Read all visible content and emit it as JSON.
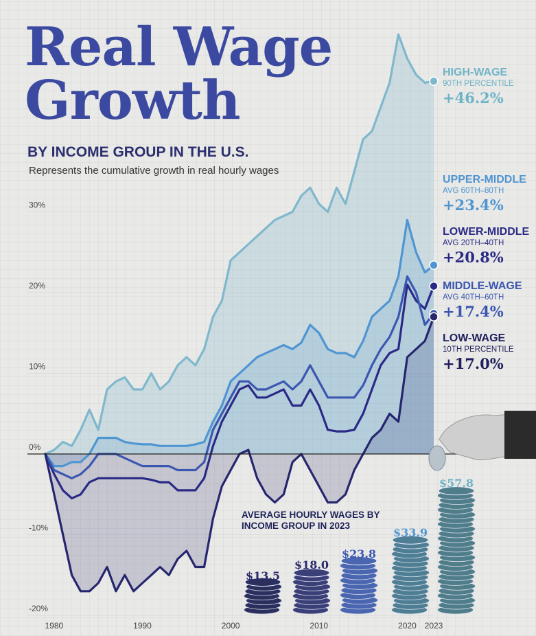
{
  "header": {
    "title_line1": "Real Wage",
    "title_line2": "Growth",
    "subtitle": "BY INCOME GROUP IN THE U.S.",
    "description": "Represents the cumulative growth in real hourly wages"
  },
  "colors": {
    "high": "#7fb8cc",
    "upper_middle": "#4f95d2",
    "lower_middle": "#2a2a86",
    "middle": "#3b57b0",
    "low": "#25266e",
    "title": "#3b4aa0"
  },
  "legend": [
    {
      "name": "HIGH-WAGE",
      "sub": "90TH PERCENTILE",
      "value": "+46.2%"
    },
    {
      "name": "UPPER-MIDDLE",
      "sub": "AVG 60TH–80TH",
      "value": "+23.4%"
    },
    {
      "name": "LOWER-MIDDLE",
      "sub": "AVG 20TH–40TH",
      "value": "+20.8%"
    },
    {
      "name": "MIDDLE-WAGE",
      "sub": "AVG 40TH–60TH",
      "value": "+17.4%"
    },
    {
      "name": "LOW-WAGE",
      "sub": "10TH PERCENTILE",
      "value": "+17.0%"
    }
  ],
  "inset": {
    "title": "AVERAGE HOURLY WAGES BY INCOME GROUP IN 2023",
    "wages": [
      {
        "label": "$13.5",
        "value": 13.5
      },
      {
        "label": "$18.0",
        "value": 18.0
      },
      {
        "label": "$23.8",
        "value": 23.8
      },
      {
        "label": "$33.9",
        "value": 33.9
      },
      {
        "label": "$57.8",
        "value": 57.8
      }
    ]
  },
  "chart_data": {
    "type": "line",
    "title": "Real Wage Growth",
    "xlabel": "",
    "ylabel": "",
    "xlim": [
      1980,
      2023
    ],
    "ylim": [
      -20,
      50
    ],
    "x_ticks": [
      1980,
      1990,
      2000,
      2010,
      2020,
      2023
    ],
    "y_ticks": [
      -20,
      -10,
      0,
      10,
      20,
      30
    ],
    "y_tick_labels": [
      "-20%",
      "-10%",
      "0%",
      "10%",
      "20%",
      "30%"
    ],
    "series": [
      {
        "name": "High-Wage",
        "x": [
          1979,
          1980,
          1981,
          1982,
          1983,
          1984,
          1985,
          1986,
          1987,
          1988,
          1989,
          1990,
          1991,
          1992,
          1993,
          1994,
          1995,
          1996,
          1997,
          1998,
          1999,
          2000,
          2001,
          2002,
          2003,
          2004,
          2005,
          2006,
          2007,
          2008,
          2009,
          2010,
          2011,
          2012,
          2013,
          2014,
          2015,
          2016,
          2017,
          2018,
          2019,
          2020,
          2021,
          2022,
          2023
        ],
        "values": [
          0,
          0.5,
          1.5,
          1,
          3,
          5.5,
          3,
          8,
          9,
          9.5,
          8,
          8,
          10,
          8,
          9,
          11,
          12,
          11,
          13,
          17,
          19,
          24,
          25,
          26,
          27,
          28,
          29,
          29.5,
          30,
          32,
          33,
          31,
          30,
          33,
          31,
          35,
          39,
          40,
          43,
          46,
          52,
          49,
          47,
          46,
          46.2
        ]
      },
      {
        "name": "Upper-Middle",
        "x": [
          1979,
          1980,
          1981,
          1982,
          1983,
          1984,
          1985,
          1986,
          1987,
          1988,
          1989,
          1990,
          1991,
          1992,
          1993,
          1994,
          1995,
          1996,
          1997,
          1998,
          1999,
          2000,
          2001,
          2002,
          2003,
          2004,
          2005,
          2006,
          2007,
          2008,
          2009,
          2010,
          2011,
          2012,
          2013,
          2014,
          2015,
          2016,
          2017,
          2018,
          2019,
          2020,
          2021,
          2022,
          2023
        ],
        "values": [
          0,
          -1.5,
          -1.5,
          -1,
          -1,
          0,
          2,
          2,
          2,
          1.5,
          1.3,
          1.2,
          1.2,
          1,
          1,
          1,
          1,
          1.2,
          1.5,
          4,
          6,
          9,
          10,
          11,
          12,
          12.5,
          13,
          13.5,
          13,
          13.8,
          16,
          15,
          13,
          12.5,
          12.5,
          12,
          14,
          17,
          18,
          19,
          22,
          29,
          25,
          22.5,
          23.4
        ]
      },
      {
        "name": "Lower-Middle",
        "x": [
          1979,
          1980,
          1981,
          1982,
          1983,
          1984,
          1985,
          1986,
          1987,
          1988,
          1989,
          1990,
          1991,
          1992,
          1993,
          1994,
          1995,
          1996,
          1997,
          1998,
          1999,
          2000,
          2001,
          2002,
          2003,
          2004,
          2005,
          2006,
          2007,
          2008,
          2009,
          2010,
          2011,
          2012,
          2013,
          2014,
          2015,
          2016,
          2017,
          2018,
          2019,
          2020,
          2021,
          2022,
          2023
        ],
        "values": [
          0,
          -2.5,
          -4.5,
          -5.5,
          -5,
          -3.5,
          -3,
          -3,
          -3,
          -3,
          -3,
          -3,
          -3.2,
          -3.5,
          -3.5,
          -4.5,
          -4.5,
          -4.5,
          -3,
          1,
          4,
          6,
          8,
          8.5,
          7,
          7,
          7.5,
          8,
          6,
          6,
          8,
          6,
          3,
          2.8,
          2.8,
          3,
          5,
          8,
          11,
          12.5,
          13,
          21,
          19,
          18,
          20.8
        ]
      },
      {
        "name": "Middle-Wage",
        "x": [
          1979,
          1980,
          1981,
          1982,
          1983,
          1984,
          1985,
          1986,
          1987,
          1988,
          1989,
          1990,
          1991,
          1992,
          1993,
          1994,
          1995,
          1996,
          1997,
          1998,
          1999,
          2000,
          2001,
          2002,
          2003,
          2004,
          2005,
          2006,
          2007,
          2008,
          2009,
          2010,
          2011,
          2012,
          2013,
          2014,
          2015,
          2016,
          2017,
          2018,
          2019,
          2020,
          2021,
          2022,
          2023
        ],
        "values": [
          0,
          -2,
          -2.5,
          -3,
          -2.5,
          -1.5,
          0,
          0,
          0,
          -0.5,
          -1,
          -1.5,
          -1.5,
          -1.5,
          -1.5,
          -2,
          -2,
          -2,
          -1,
          3,
          5,
          7,
          9,
          9,
          8,
          8,
          8.5,
          9,
          8,
          9,
          11,
          9,
          7,
          7,
          7,
          7,
          8.5,
          11,
          13,
          14.5,
          17,
          22,
          20,
          16,
          17.4
        ]
      },
      {
        "name": "Low-Wage",
        "x": [
          1979,
          1980,
          1981,
          1982,
          1983,
          1984,
          1985,
          1986,
          1987,
          1988,
          1989,
          1990,
          1991,
          1992,
          1993,
          1994,
          1995,
          1996,
          1997,
          1998,
          1999,
          2000,
          2001,
          2002,
          2003,
          2004,
          2005,
          2006,
          2007,
          2008,
          2009,
          2010,
          2011,
          2012,
          2013,
          2014,
          2015,
          2016,
          2017,
          2018,
          2019,
          2020,
          2021,
          2022,
          2023
        ],
        "values": [
          0,
          -5,
          -10,
          -15,
          -17,
          -17,
          -16,
          -14,
          -17,
          -15,
          -17,
          -16,
          -15,
          -14,
          -15,
          -13,
          -12,
          -14,
          -14,
          -8,
          -4,
          -2,
          0,
          0.5,
          -3,
          -5,
          -6,
          -5,
          -1,
          0,
          -2,
          -4,
          -6,
          -6,
          -5,
          -2,
          0,
          2,
          3,
          5,
          4,
          12,
          13,
          14,
          17.0
        ]
      }
    ]
  }
}
